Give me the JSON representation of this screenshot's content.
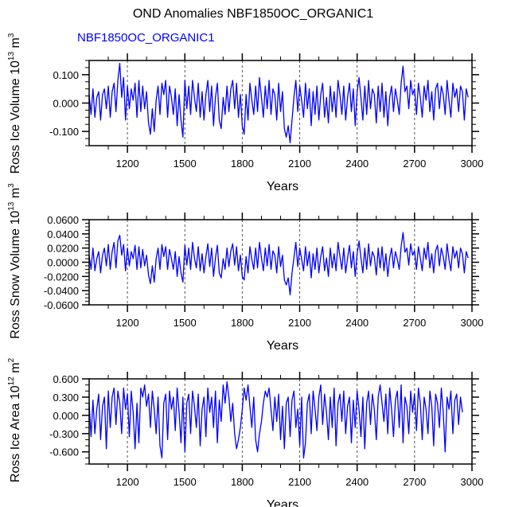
{
  "title": "OND Anomalies NBF1850OC_ORGANIC1",
  "subtitle": "NBF1850OC_ORGANIC1",
  "colors": {
    "line": "#0000ff",
    "subtitle": "#0000ff",
    "axes": "#000000",
    "gridline": "#555555"
  },
  "chart_data": [
    {
      "type": "line",
      "name": "ross-ice-volume",
      "title": "",
      "xlabel": "Years",
      "ylabel": {
        "base": "Ross Ice Volume 10",
        "exp1": "13",
        "unit": " m",
        "exp2": "3"
      },
      "xlim": [
        1000,
        3000
      ],
      "ylim": [
        -0.15,
        0.15
      ],
      "xticks": [
        1200,
        1500,
        1800,
        2100,
        2400,
        2700,
        3000
      ],
      "xtick_labels": [
        "1200",
        "1500",
        "1800",
        "2100",
        "2400",
        "2700",
        "3000"
      ],
      "yticks": [
        0.1,
        0.0,
        -0.1
      ],
      "ytick_labels": [
        "0.100",
        "0.000",
        "-0.100"
      ],
      "vertical_reference_lines": [
        1200,
        1500,
        1800,
        2100,
        2400,
        2700
      ],
      "x_start": 1000,
      "x_step": 10,
      "values": [
        0.03,
        -0.04,
        0.05,
        -0.05,
        0.02,
        0.04,
        -0.06,
        0.03,
        0.05,
        -0.02,
        0.06,
        -0.05,
        0.04,
        0.07,
        -0.03,
        0.08,
        0.14,
        0.02,
        0.09,
        -0.06,
        0.06,
        -0.02,
        0.05,
        0.01,
        0.07,
        -0.05,
        0.08,
        -0.03,
        0.06,
        -0.02,
        0.04,
        -0.07,
        -0.11,
        -0.02,
        -0.1,
        0.01,
        0.06,
        -0.04,
        0.07,
        0.03,
        0.08,
        -0.05,
        0.06,
        0.02,
        -0.04,
        0.05,
        -0.08,
        0.03,
        -0.06,
        -0.12,
        0.08,
        -0.02,
        0.06,
        -0.04,
        0.08,
        0.02,
        -0.03,
        0.07,
        -0.05,
        0.04,
        -0.06,
        0.03,
        0.08,
        -0.03,
        0.06,
        -0.08,
        0.02,
        0.07,
        -0.06,
        -0.09,
        0.02,
        -0.04,
        0.06,
        -0.03,
        0.05,
        0.08,
        -0.02,
        0.07,
        -0.05,
        0.03,
        -0.08,
        -0.11,
        0.03,
        -0.06,
        0.07,
        0.01,
        -0.04,
        0.06,
        -0.03,
        0.09,
        0.02,
        -0.05,
        0.06,
        -0.02,
        0.08,
        -0.04,
        0.05,
        0.03,
        -0.06,
        0.07,
        -0.03,
        0.04,
        -0.09,
        -0.12,
        -0.08,
        -0.14,
        -0.06,
        0.02,
        0.08,
        -0.03,
        0.06,
        0.01,
        -0.05,
        0.07,
        -0.02,
        0.05,
        -0.08,
        0.04,
        -0.04,
        0.06,
        -0.06,
        0.03,
        0.07,
        -0.05,
        0.02,
        -0.07,
        0.06,
        -0.03,
        0.04,
        -0.05,
        0.08,
        0.03,
        -0.04,
        0.06,
        -0.06,
        0.02,
        0.07,
        -0.03,
        0.05,
        -0.08,
        0.04,
        0.09,
        0.02,
        -0.06,
        0.06,
        -0.04,
        0.08,
        -0.02,
        0.05,
        0.03,
        -0.07,
        0.06,
        -0.03,
        0.07,
        -0.05,
        0.04,
        -0.08,
        0.02,
        0.06,
        -0.03,
        0.05,
        0.01,
        -0.04,
        0.07,
        0.13,
        0.04,
        0.06,
        -0.02,
        0.08,
        0.03,
        0.05,
        -0.04,
        0.07,
        0.02,
        -0.05,
        0.06,
        0.01,
        0.08,
        -0.03,
        0.04,
        -0.06,
        0.05,
        0.07,
        -0.02,
        0.06,
        0.03,
        -0.04,
        0.08,
        0.01,
        -0.05,
        0.07,
        0.02,
        0.05,
        -0.03,
        0.06,
        0.04,
        -0.06,
        0.05,
        0.02
      ]
    },
    {
      "type": "line",
      "name": "ross-snow-volume",
      "title": "",
      "xlabel": "Years",
      "ylabel": {
        "base": "Ross Snow Volume 10",
        "exp1": "13",
        "unit": " m",
        "exp2": "3"
      },
      "xlim": [
        1000,
        3000
      ],
      "ylim": [
        -0.06,
        0.06
      ],
      "xticks": [
        1200,
        1500,
        1800,
        2100,
        2400,
        2700,
        3000
      ],
      "xtick_labels": [
        "1200",
        "1500",
        "1800",
        "2100",
        "2400",
        "2700",
        "3000"
      ],
      "yticks": [
        0.06,
        0.04,
        0.02,
        0.0,
        -0.02,
        -0.04,
        -0.06
      ],
      "ytick_labels": [
        "0.0600",
        "0.0400",
        "0.0200",
        "0.0000",
        "-0.0200",
        "-0.0400",
        "-0.0600"
      ],
      "vertical_reference_lines": [
        1200,
        1500,
        1800,
        2100,
        2400,
        2700
      ],
      "x_start": 1000,
      "x_step": 10,
      "values": [
        0.01,
        -0.01,
        0.02,
        -0.012,
        0.005,
        0.015,
        -0.015,
        0.01,
        0.02,
        -0.005,
        0.025,
        -0.01,
        0.015,
        0.028,
        -0.008,
        0.03,
        0.038,
        0.01,
        0.025,
        -0.012,
        0.02,
        -0.005,
        0.015,
        0.005,
        0.024,
        -0.01,
        0.022,
        -0.008,
        0.018,
        -0.005,
        0.01,
        -0.018,
        -0.03,
        -0.005,
        -0.028,
        0.005,
        0.02,
        -0.01,
        0.025,
        0.008,
        0.022,
        -0.01,
        0.018,
        0.005,
        -0.01,
        0.015,
        -0.02,
        0.008,
        -0.015,
        -0.028,
        0.024,
        -0.004,
        0.02,
        -0.01,
        0.028,
        0.006,
        -0.008,
        0.022,
        -0.012,
        0.012,
        -0.015,
        0.008,
        0.026,
        -0.006,
        0.02,
        -0.02,
        0.006,
        0.024,
        -0.015,
        -0.022,
        0.005,
        -0.01,
        0.02,
        -0.006,
        0.016,
        0.026,
        -0.004,
        0.022,
        -0.012,
        0.01,
        -0.02,
        -0.025,
        0.008,
        -0.015,
        0.022,
        0.004,
        -0.01,
        0.02,
        -0.008,
        0.028,
        0.006,
        -0.012,
        0.02,
        -0.005,
        0.025,
        -0.01,
        0.016,
        0.01,
        -0.015,
        0.022,
        -0.006,
        0.01,
        -0.025,
        -0.032,
        -0.022,
        -0.046,
        -0.015,
        0.006,
        0.028,
        -0.006,
        0.02,
        0.004,
        -0.012,
        0.022,
        -0.005,
        0.015,
        -0.022,
        0.012,
        -0.01,
        0.02,
        -0.015,
        0.008,
        0.022,
        -0.012,
        0.006,
        -0.02,
        0.02,
        -0.008,
        0.012,
        -0.012,
        0.028,
        0.008,
        -0.01,
        0.02,
        -0.015,
        0.006,
        0.024,
        -0.008,
        0.015,
        -0.02,
        0.012,
        0.03,
        0.006,
        -0.015,
        0.02,
        -0.01,
        0.026,
        -0.005,
        0.015,
        0.008,
        -0.018,
        0.02,
        -0.008,
        0.022,
        -0.012,
        0.012,
        -0.02,
        0.006,
        0.02,
        -0.008,
        0.015,
        0.004,
        -0.01,
        0.022,
        0.042,
        0.014,
        0.02,
        -0.004,
        0.026,
        0.01,
        0.016,
        -0.01,
        0.022,
        0.006,
        -0.012,
        0.02,
        0.004,
        0.028,
        -0.008,
        0.012,
        -0.015,
        0.016,
        0.024,
        -0.005,
        0.02,
        0.008,
        -0.01,
        0.026,
        0.004,
        -0.012,
        0.022,
        0.006,
        0.016,
        -0.008,
        0.02,
        0.012,
        -0.015,
        0.015,
        0.006
      ]
    },
    {
      "type": "line",
      "name": "ross-ice-area",
      "title": "",
      "xlabel": "Years",
      "ylabel": {
        "base": "Ross Ice Area 10",
        "exp1": "12",
        "unit": " m",
        "exp2": "2"
      },
      "xlim": [
        1000,
        3000
      ],
      "ylim": [
        -0.8,
        0.6
      ],
      "xticks": [
        1200,
        1500,
        1800,
        2100,
        2400,
        2700,
        3000
      ],
      "xtick_labels": [
        "1200",
        "1500",
        "1800",
        "2100",
        "2400",
        "2700",
        "3000"
      ],
      "yticks": [
        0.6,
        0.3,
        0.0,
        -0.3,
        -0.6
      ],
      "ytick_labels": [
        "0.600",
        "0.300",
        "0.000",
        "-0.300",
        "-0.600"
      ],
      "vertical_reference_lines": [
        1200,
        1500,
        1800,
        2100,
        2400,
        2700
      ],
      "x_start": 1000,
      "x_step": 10,
      "values": [
        0.2,
        -0.35,
        0.25,
        -0.3,
        0.1,
        0.35,
        -0.4,
        0.15,
        0.3,
        -0.55,
        0.4,
        -0.2,
        0.3,
        0.45,
        -0.15,
        0.4,
        0.2,
        -0.3,
        0.45,
        0.1,
        0.35,
        -0.35,
        0.4,
        0.05,
        -0.55,
        0.2,
        -0.45,
        0.45,
        0.3,
        0.5,
        0.15,
        0.35,
        -0.2,
        0.4,
        0.1,
        -0.3,
        0.3,
        -0.5,
        -0.7,
        0.2,
        0.35,
        -0.4,
        0.4,
        0.1,
        0.3,
        -0.25,
        0.45,
        0.05,
        -0.45,
        0.3,
        -0.6,
        0.2,
        0.35,
        -0.3,
        0.4,
        0.15,
        -0.2,
        0.35,
        -0.5,
        0.1,
        0.3,
        -0.35,
        0.45,
        0.05,
        0.3,
        -0.2,
        0.4,
        -0.45,
        0.25,
        -0.1,
        0.5,
        0.2,
        0.55,
        0.3,
        -0.1,
        0.2,
        -0.3,
        -0.55,
        -0.4,
        -0.2,
        0.1,
        0.45,
        0.25,
        0.5,
        0.15,
        -0.2,
        0.3,
        -0.4,
        -0.6,
        -0.3,
        -0.1,
        0.2,
        0.4,
        0.3,
        0.45,
        0.1,
        -0.25,
        0.3,
        -0.1,
        0.35,
        -0.4,
        0.15,
        -0.55,
        0.2,
        0.3,
        -0.35,
        0.25,
        0.4,
        -0.2,
        0.1,
        -0.5,
        0.3,
        -0.7,
        -0.45,
        0.2,
        0.35,
        -0.3,
        0.4,
        0.1,
        -0.25,
        0.3,
        0.5,
        -0.15,
        0.35,
        0.05,
        -0.4,
        0.3,
        -0.2,
        0.45,
        -0.5,
        0.2,
        0.35,
        -0.1,
        0.4,
        -0.3,
        0.15,
        0.3,
        -0.45,
        0.25,
        -0.2,
        0.4,
        0.1,
        -0.35,
        0.3,
        -0.55,
        0.2,
        0.4,
        -0.15,
        0.35,
        0.1,
        -0.4,
        0.3,
        0.5,
        0.2,
        -0.1,
        0.35,
        -0.3,
        0.45,
        0.1,
        -0.35,
        0.25,
        0.4,
        -0.2,
        0.5,
        -0.45,
        0.3,
        0.15,
        -0.3,
        0.4,
        0.05,
        0.35,
        -0.25,
        0.45,
        0.2,
        -0.4,
        0.3,
        0.1,
        -0.3,
        0.4,
        0.15,
        -0.5,
        0.35,
        0.2,
        -0.2,
        0.45,
        0.05,
        -0.6,
        0.3,
        0.1,
        0.4,
        -0.3,
        0.25,
        0.35,
        -0.15,
        0.3,
        0.05
      ]
    }
  ]
}
